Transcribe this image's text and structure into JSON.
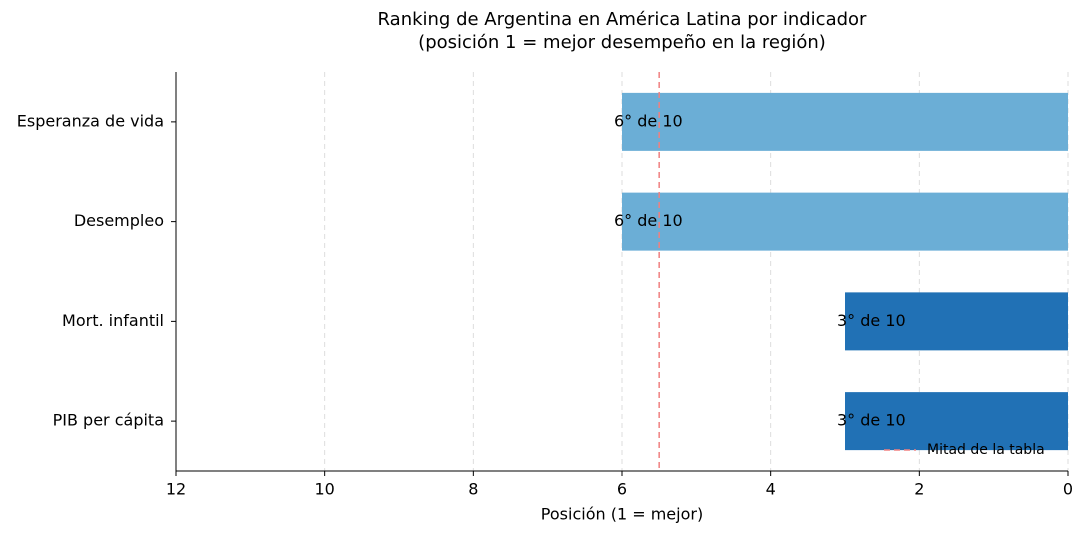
{
  "chart_data": {
    "type": "barh",
    "title": [
      "Ranking de Argentina en América Latina por indicador",
      "(posición 1 = mejor desempeño en la región)"
    ],
    "xlabel": "Posición (1 = mejor)",
    "categories": [
      "Esperanza de vida",
      "Desempleo",
      "Mort. infantil",
      "PIB per cápita"
    ],
    "values": [
      6,
      6,
      3,
      3
    ],
    "value_labels": [
      "6° de 10",
      "6° de 10",
      "3° de 10",
      "3° de 10"
    ],
    "colors": [
      "#6baed6",
      "#6baed6",
      "#2171b5",
      "#2171b5"
    ],
    "xlim": [
      12,
      0
    ],
    "xticks": [
      12,
      10,
      8,
      6,
      4,
      2,
      0
    ],
    "grid": true,
    "ref_line": {
      "value": 5.5,
      "label": "Mitad de la tabla",
      "color": "#f08080"
    },
    "legend": "lower right"
  }
}
